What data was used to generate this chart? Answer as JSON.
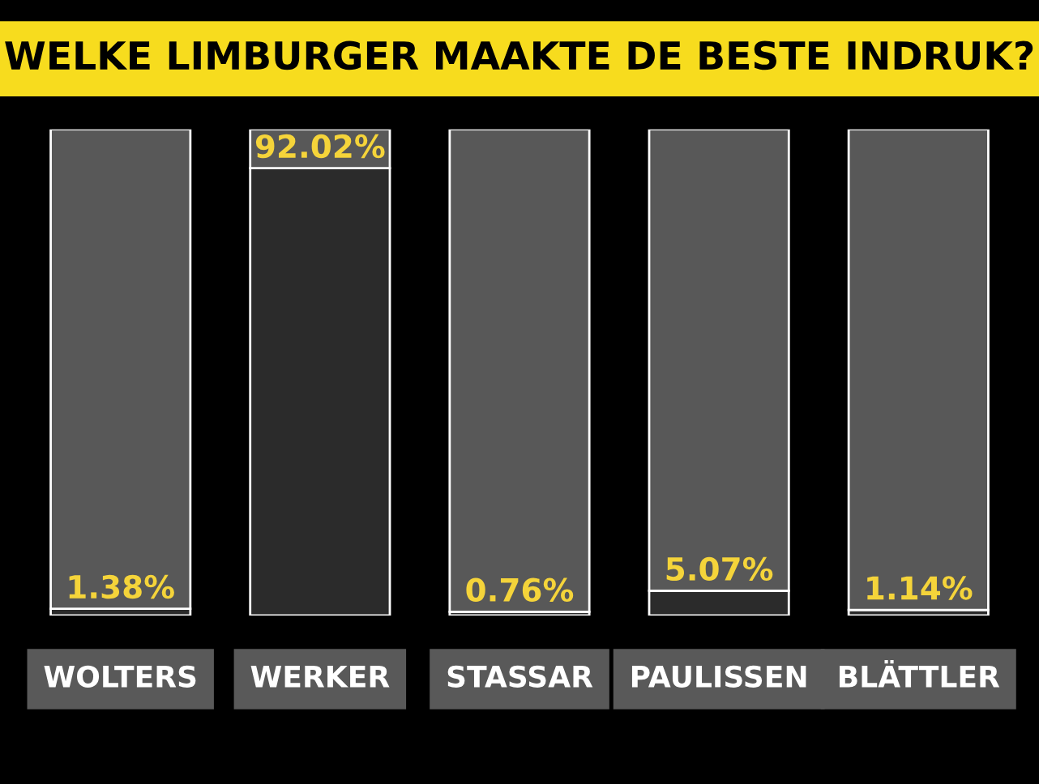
{
  "chart_data": {
    "type": "bar",
    "title": "WELKE LIMBURGER MAAKTE DE BESTE INDRUK?",
    "categories": [
      "WOLTERS",
      "WERKER",
      "STASSAR",
      "PAULISSEN",
      "BLÄTTLER"
    ],
    "stacked": true,
    "series": [
      {
        "color": "#2b2b2b",
        "values": [
          1.38,
          92.02,
          0.76,
          5.07,
          1.14
        ],
        "value_labels": [
          "1.38%",
          "92.02%",
          "0.76%",
          "5.07%",
          "1.14%"
        ]
      },
      {
        "color": "#585858",
        "values": [
          98.62,
          7.98,
          99.24,
          94.93,
          98.86
        ]
      }
    ],
    "ylim": [
      0,
      100
    ],
    "tick_labels": "x",
    "grid": false,
    "legend": false
  }
}
